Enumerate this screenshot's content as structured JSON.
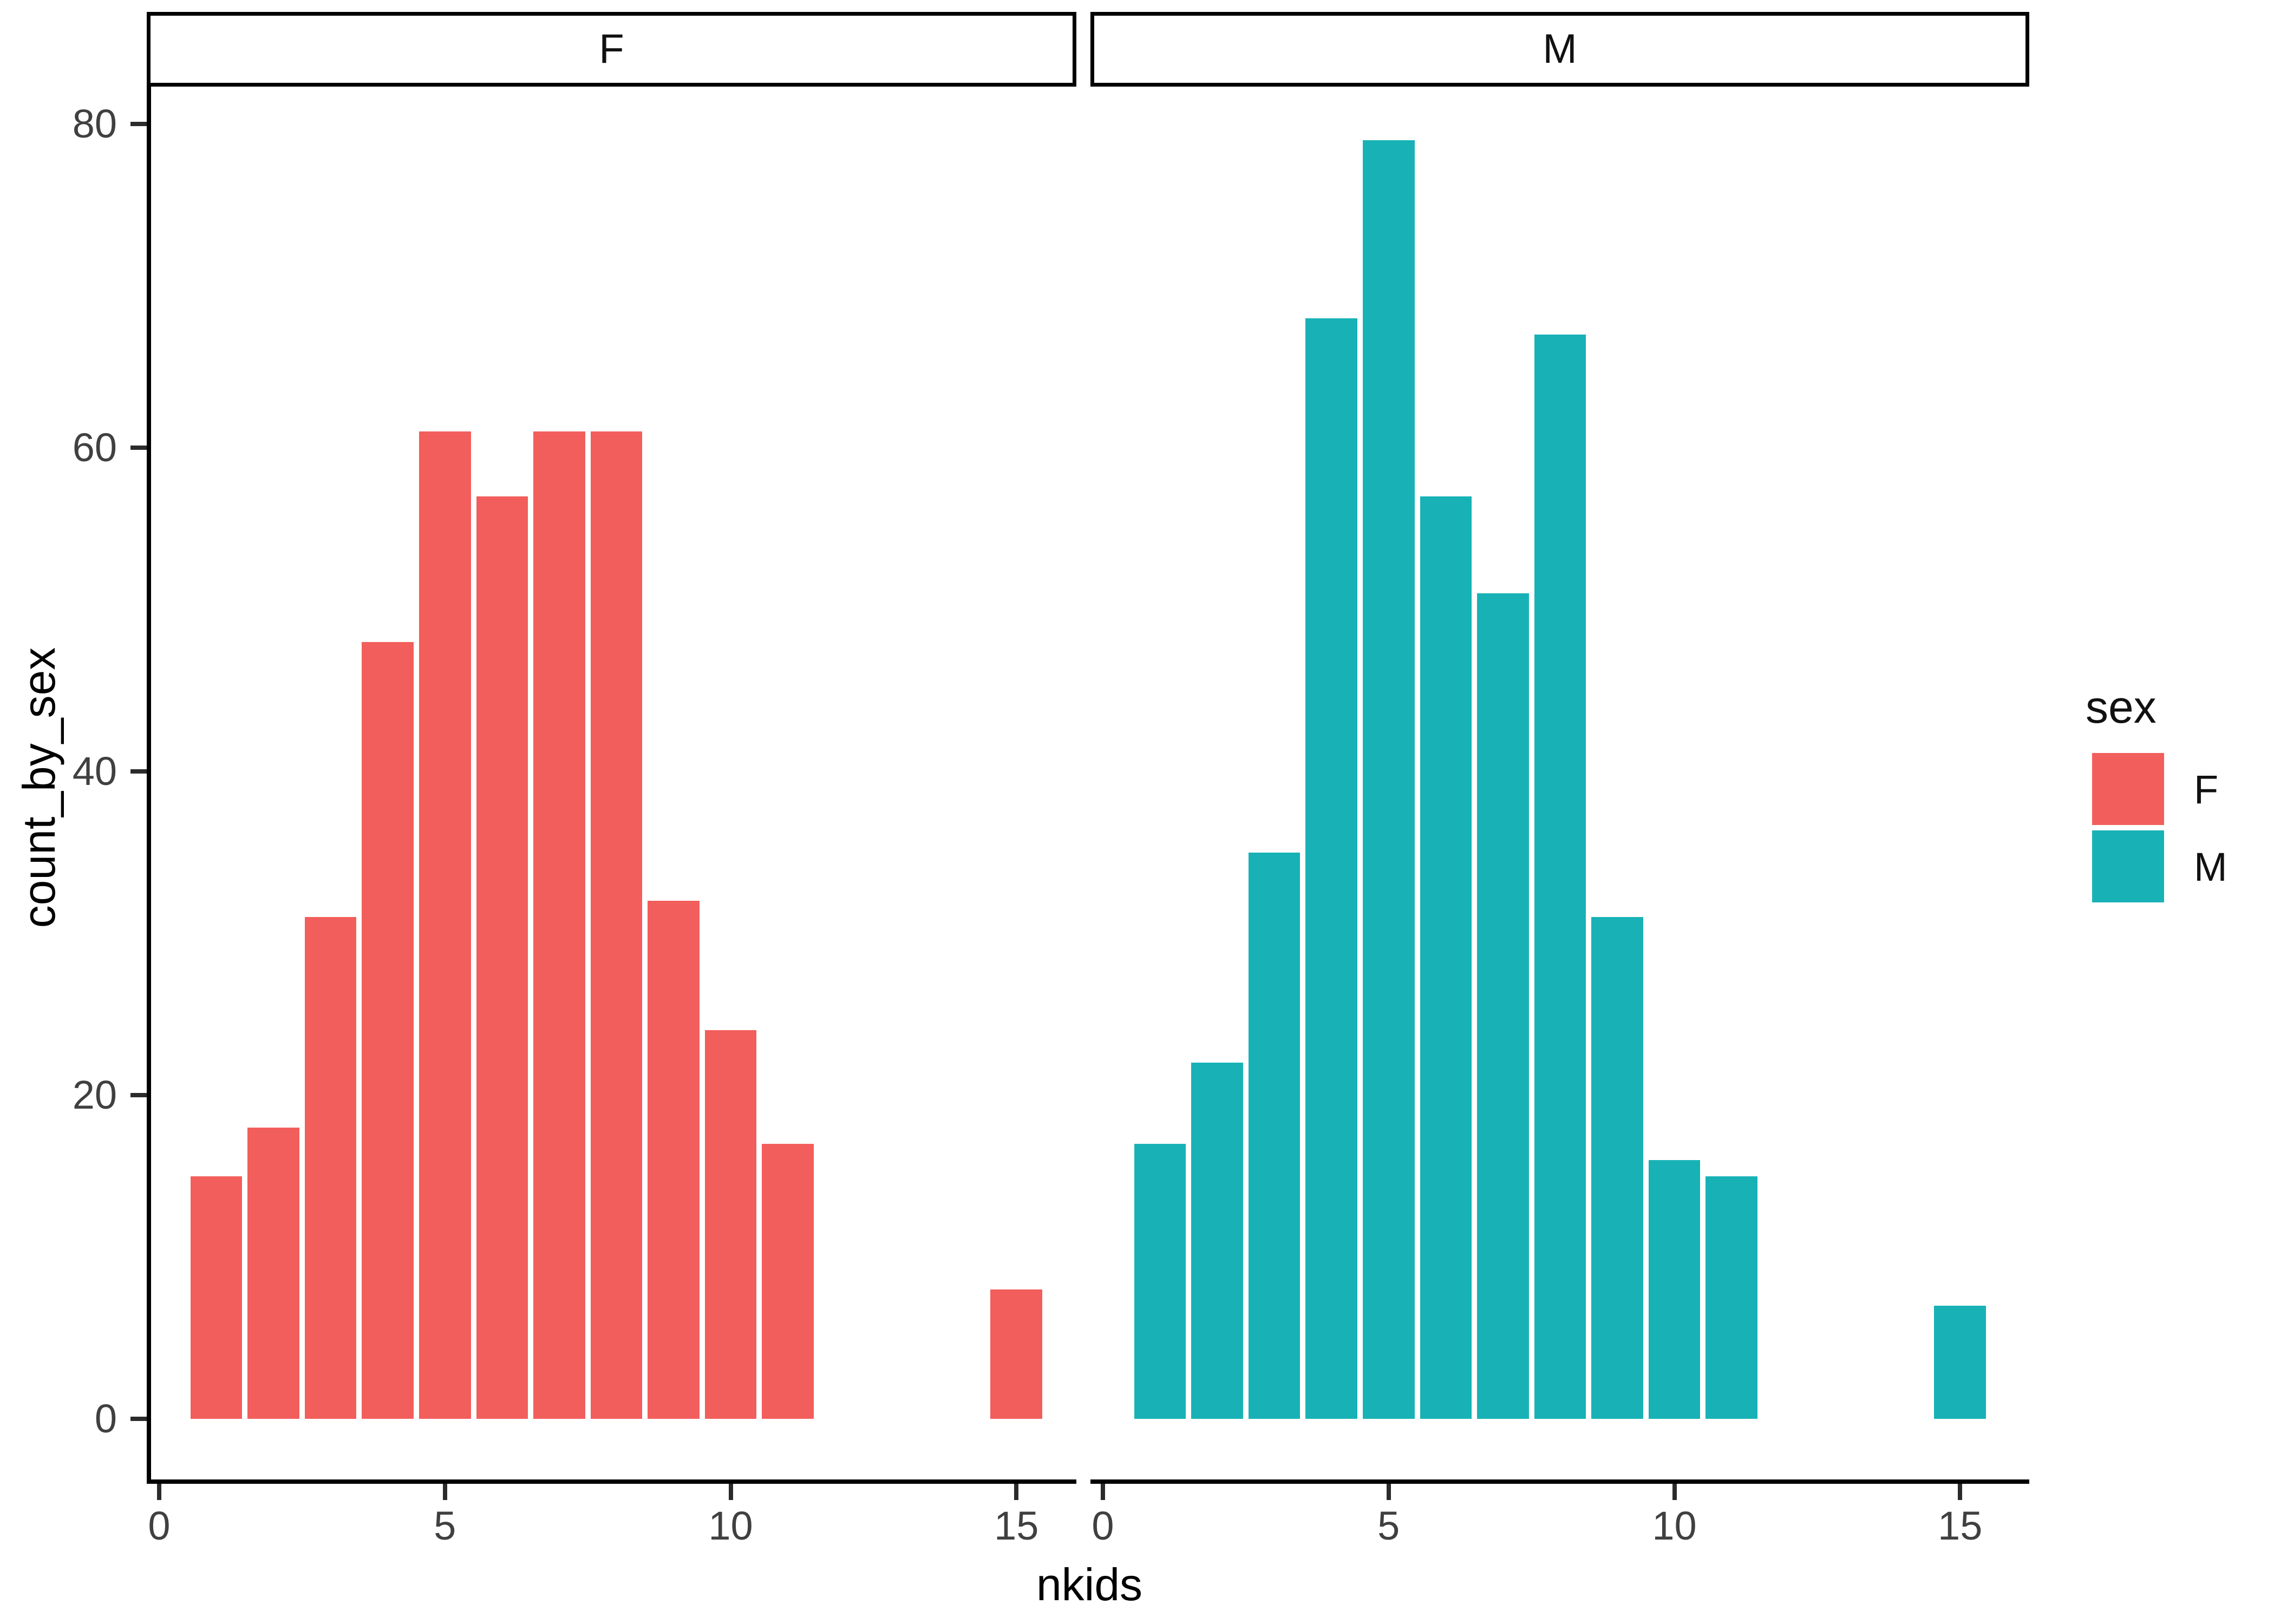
{
  "chart_data": {
    "type": "bar",
    "subtype": "faceted-histogram",
    "title": "",
    "xlabel": "nkids",
    "ylabel": "count_by_sex",
    "binwidth": 1,
    "x_ticks": [
      0,
      5,
      10,
      15
    ],
    "y_ticks": [
      0,
      20,
      40,
      60,
      80
    ],
    "xlim": [
      -0.15,
      16.2
    ],
    "ylim": [
      -3.95,
      82.95
    ],
    "grid": "off",
    "legend_position": "right",
    "facets": [
      {
        "label": "F",
        "series": "F",
        "color": "#F25E5B",
        "x": [
          1,
          2,
          3,
          4,
          5,
          6,
          7,
          8,
          9,
          10,
          11,
          15
        ],
        "counts": [
          15,
          18,
          31,
          48,
          61,
          57,
          61,
          61,
          32,
          24,
          17,
          8
        ]
      },
      {
        "label": "M",
        "series": "M",
        "color": "#18B2B6",
        "x": [
          1,
          2,
          3,
          4,
          5,
          6,
          7,
          8,
          9,
          10,
          11,
          15
        ],
        "counts": [
          17,
          22,
          35,
          68,
          79,
          57,
          51,
          67,
          31,
          16,
          15,
          7
        ]
      }
    ],
    "legend": {
      "title": "sex",
      "entries": [
        {
          "label": "F",
          "color": "#F25E5B"
        },
        {
          "label": "M",
          "color": "#18B2B6"
        }
      ]
    }
  }
}
